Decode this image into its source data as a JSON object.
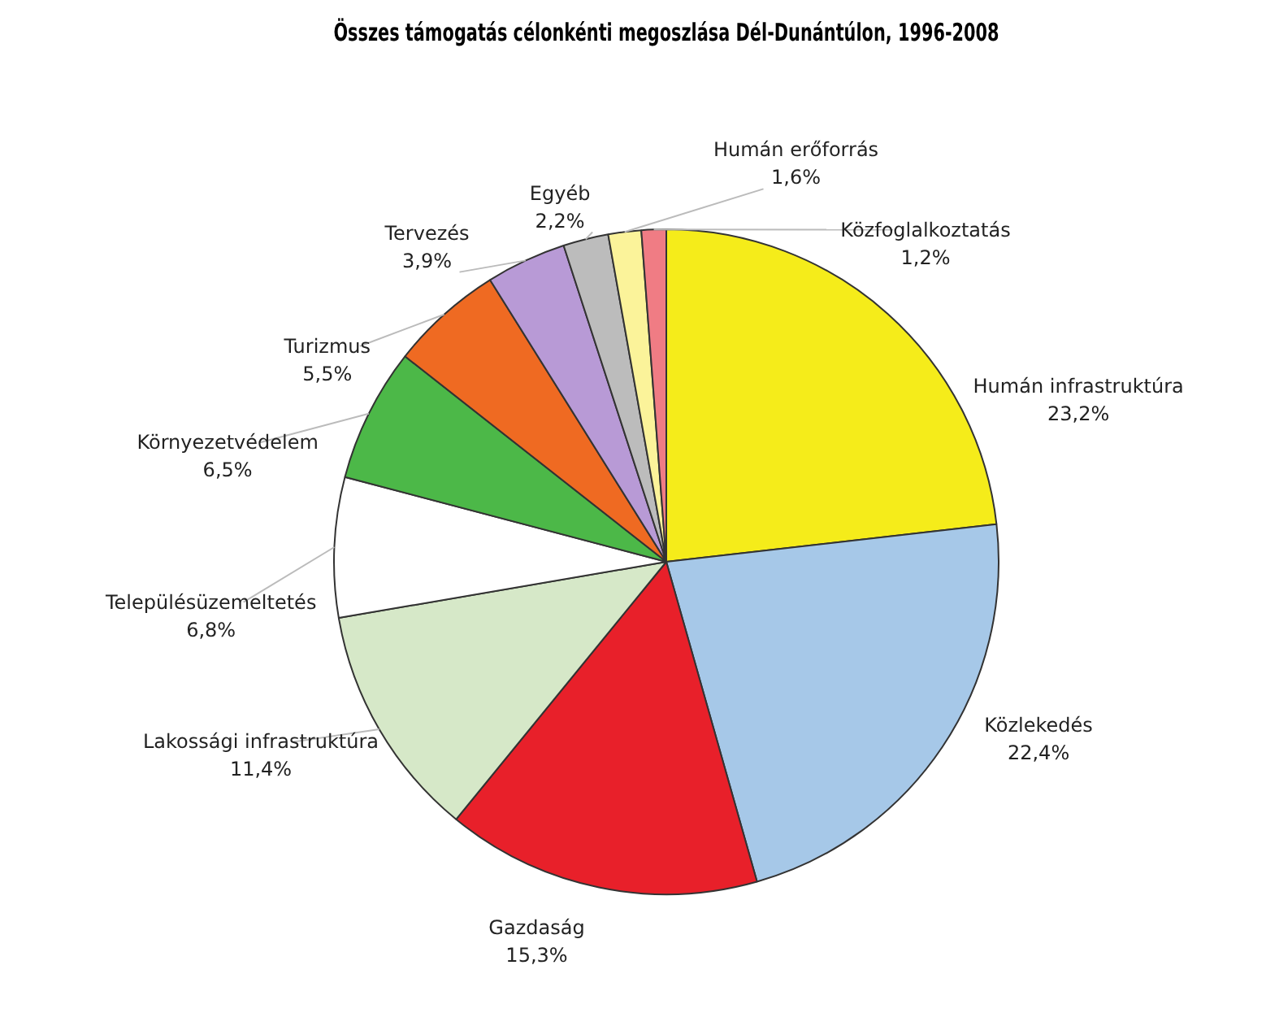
{
  "chart_data": {
    "type": "pie",
    "title": "Összes támogatás célonkénti megoszlása Dél-Dunántúlon, 1996-2008",
    "categories": [
      "Humán infrastruktúra",
      "Közlekedés",
      "Gazdaság",
      "Lakossági infrastruktúra",
      "Településüzemeltetés",
      "Környezetvédelem",
      "Turizmus",
      "Tervezés",
      "Egyéb",
      "Humán erőforrás",
      "Közfoglalkoztatás"
    ],
    "values": [
      23.2,
      22.4,
      15.3,
      11.4,
      6.8,
      6.5,
      5.5,
      3.9,
      2.2,
      1.6,
      1.2
    ],
    "colors": [
      "#f5ec1a",
      "#a6c8e8",
      "#e8202a",
      "#d6e8c8",
      "#ffffff",
      "#4cb848",
      "#ef6a22",
      "#b89ad6",
      "#bcbcbc",
      "#fbf39a",
      "#f07c84"
    ],
    "value_labels": [
      "23,2%",
      "22,4%",
      "15,3%",
      "11,4%",
      "6,8%",
      "6,5%",
      "5,5%",
      "3,9%",
      "2,2%",
      "1,6%",
      "1,2%"
    ]
  }
}
